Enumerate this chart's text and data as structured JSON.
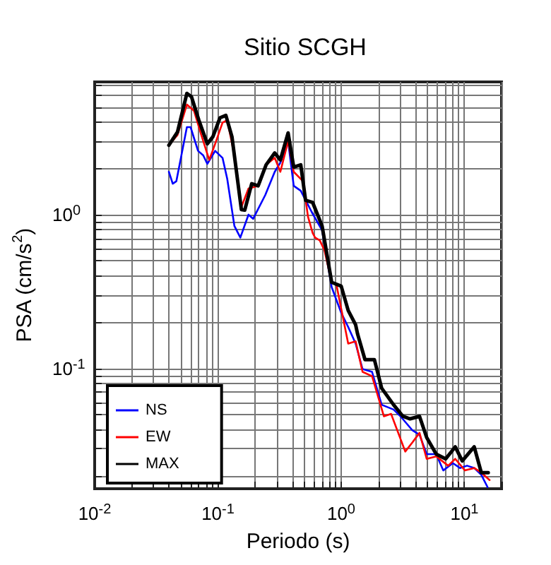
{
  "chart_data": {
    "type": "line",
    "title": "Sitio SCGH",
    "xlabel": "Periodo (s)",
    "ylabel": "PSA (cm/s$^{2}$)",
    "log": "xy",
    "grid": true,
    "legend": "bottom left",
    "marker": "none",
    "line_style": "solid",
    "xlim": [
      0.01,
      20
    ],
    "ylim": [
      0.0165,
      7.3
    ],
    "xticks": [
      {
        "value": 0.01,
        "label": "10$^{-2}$"
      },
      {
        "value": 0.02,
        "label": null
      },
      {
        "value": 0.03,
        "label": null
      },
      {
        "value": 0.04,
        "label": null
      },
      {
        "value": 0.05,
        "label": null
      },
      {
        "value": 0.06,
        "label": null
      },
      {
        "value": 0.07,
        "label": null
      },
      {
        "value": 0.08,
        "label": null
      },
      {
        "value": 0.09,
        "label": null
      },
      {
        "value": 0.1,
        "label": "10$^{-1}$"
      },
      {
        "value": 0.2,
        "label": null
      },
      {
        "value": 0.3,
        "label": null
      },
      {
        "value": 0.4,
        "label": null
      },
      {
        "value": 0.5,
        "label": null
      },
      {
        "value": 0.6,
        "label": null
      },
      {
        "value": 0.7,
        "label": null
      },
      {
        "value": 0.8,
        "label": null
      },
      {
        "value": 0.9,
        "label": null
      },
      {
        "value": 1,
        "label": "10$^{0}$"
      },
      {
        "value": 2,
        "label": null
      },
      {
        "value": 3,
        "label": null
      },
      {
        "value": 4,
        "label": null
      },
      {
        "value": 5,
        "label": null
      },
      {
        "value": 6,
        "label": null
      },
      {
        "value": 7,
        "label": null
      },
      {
        "value": 8,
        "label": null
      },
      {
        "value": 9,
        "label": null
      },
      {
        "value": 10,
        "label": "10$^{1}$"
      },
      {
        "value": 20,
        "label": null
      }
    ],
    "yticks": [
      {
        "value": 0.02,
        "label": null
      },
      {
        "value": 0.03,
        "label": null
      },
      {
        "value": 0.04,
        "label": null
      },
      {
        "value": 0.05,
        "label": null
      },
      {
        "value": 0.06,
        "label": null
      },
      {
        "value": 0.07,
        "label": null
      },
      {
        "value": 0.08,
        "label": null
      },
      {
        "value": 0.09,
        "label": null
      },
      {
        "value": 0.1,
        "label": "10$^{-1}$"
      },
      {
        "value": 0.2,
        "label": null
      },
      {
        "value": 0.3,
        "label": null
      },
      {
        "value": 0.4,
        "label": null
      },
      {
        "value": 0.5,
        "label": null
      },
      {
        "value": 0.6,
        "label": null
      },
      {
        "value": 0.7,
        "label": null
      },
      {
        "value": 0.8,
        "label": null
      },
      {
        "value": 0.9,
        "label": null
      },
      {
        "value": 1,
        "label": "10$^{0}$"
      },
      {
        "value": 2,
        "label": null
      },
      {
        "value": 3,
        "label": null
      },
      {
        "value": 4,
        "label": null
      },
      {
        "value": 5,
        "label": null
      },
      {
        "value": 6,
        "label": null
      },
      {
        "value": 7,
        "label": null
      }
    ],
    "series": [
      {
        "name": "NS",
        "color": "#0000ff",
        "x": [
          0.04,
          0.043,
          0.046,
          0.056,
          0.06,
          0.069,
          0.076,
          0.082,
          0.095,
          0.109,
          0.119,
          0.136,
          0.152,
          0.177,
          0.193,
          0.242,
          0.289,
          0.321,
          0.371,
          0.412,
          0.47,
          0.577,
          0.7,
          0.837,
          1.0,
          1.14,
          1.31,
          1.49,
          1.78,
          2.13,
          2.66,
          3.03,
          3.78,
          4.32,
          4.94,
          5.9,
          6.73,
          8.05,
          9.2,
          10.5,
          12.0,
          13.7,
          15.4
        ],
        "values": [
          1.9,
          1.59,
          1.65,
          3.71,
          3.71,
          2.6,
          2.43,
          2.14,
          2.6,
          2.34,
          1.71,
          0.845,
          0.71,
          1.0,
          0.94,
          1.34,
          1.9,
          2.18,
          3.0,
          1.54,
          1.43,
          1.04,
          0.79,
          0.338,
          0.23,
          0.186,
          0.145,
          0.099,
          0.095,
          0.058,
          0.054,
          0.0488,
          0.0396,
          0.037,
          0.0277,
          0.0277,
          0.0217,
          0.0242,
          0.0225,
          0.0233,
          0.0225,
          0.0203,
          0.0169
        ]
      },
      {
        "name": "EW",
        "color": "#ff0000",
        "x": [
          0.04,
          0.047,
          0.056,
          0.064,
          0.073,
          0.085,
          0.095,
          0.109,
          0.119,
          0.136,
          0.155,
          0.177,
          0.212,
          0.246,
          0.289,
          0.321,
          0.371,
          0.412,
          0.49,
          0.538,
          0.587,
          0.614,
          0.67,
          0.73,
          0.837,
          0.915,
          1.14,
          1.31,
          1.49,
          1.78,
          2.22,
          2.54,
          3.31,
          3.78,
          4.32,
          4.94,
          5.9,
          7.37,
          8.42,
          10.1,
          12.0,
          13.7,
          16.0
        ],
        "values": [
          2.83,
          3.3,
          5.2,
          4.73,
          3.33,
          2.27,
          2.89,
          3.97,
          4.12,
          2.43,
          1.12,
          1.48,
          1.54,
          2.11,
          2.34,
          1.9,
          3.0,
          1.9,
          1.65,
          0.97,
          0.76,
          0.71,
          0.68,
          0.59,
          0.363,
          0.35,
          0.145,
          0.15,
          0.095,
          0.089,
          0.0488,
          0.0506,
          0.0288,
          0.033,
          0.0381,
          0.0258,
          0.0268,
          0.0233,
          0.0258,
          0.0217,
          0.0225,
          0.021,
          0.0188
        ]
      },
      {
        "name": "MAX",
        "color": "#000000",
        "x": [
          0.04,
          0.047,
          0.056,
          0.061,
          0.07,
          0.082,
          0.091,
          0.104,
          0.116,
          0.13,
          0.155,
          0.165,
          0.188,
          0.212,
          0.246,
          0.289,
          0.321,
          0.371,
          0.412,
          0.47,
          0.514,
          0.587,
          0.7,
          0.837,
          1.0,
          1.14,
          1.31,
          1.36,
          1.56,
          1.86,
          2.13,
          2.66,
          3.17,
          3.62,
          4.32,
          4.94,
          5.9,
          7.04,
          8.42,
          9.6,
          12.0,
          13.7,
          15.6
        ],
        "values": [
          2.83,
          3.45,
          6.15,
          5.85,
          4.12,
          2.89,
          3.21,
          4.27,
          4.42,
          3.21,
          1.08,
          1.07,
          1.59,
          1.54,
          2.11,
          2.52,
          2.27,
          3.4,
          2.04,
          2.11,
          1.24,
          1.2,
          0.845,
          0.363,
          0.343,
          0.238,
          0.192,
          0.167,
          0.114,
          0.114,
          0.0744,
          0.058,
          0.0488,
          0.047,
          0.0488,
          0.0355,
          0.0277,
          0.0258,
          0.0309,
          0.025,
          0.0309,
          0.021,
          0.021
        ]
      }
    ]
  }
}
